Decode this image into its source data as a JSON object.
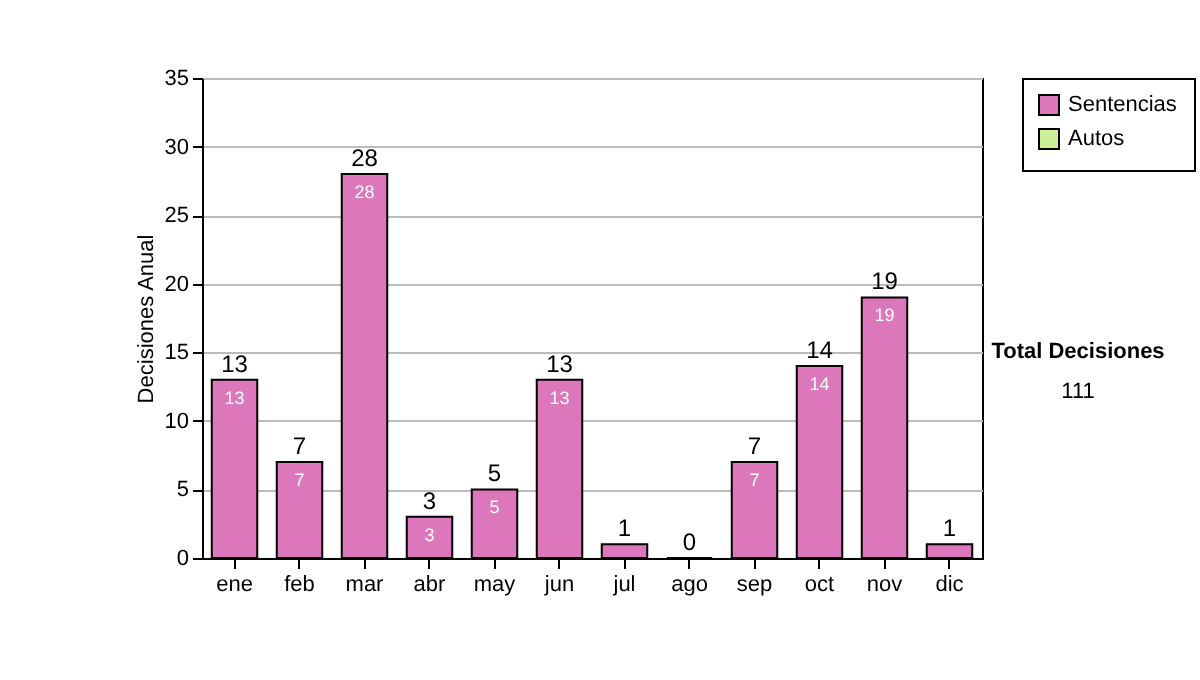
{
  "chart_data": {
    "type": "bar",
    "ylabel": "Decisiones Anual",
    "categories": [
      "ene",
      "feb",
      "mar",
      "abr",
      "may",
      "jun",
      "jul",
      "ago",
      "sep",
      "oct",
      "nov",
      "dic"
    ],
    "stacked": true,
    "series": [
      {
        "name": "Sentencias",
        "color": "#dd77bb",
        "values": [
          13,
          7,
          28,
          3,
          5,
          13,
          1,
          0,
          7,
          14,
          19,
          1
        ],
        "value_labels": [
          "13",
          "7",
          "28",
          "3",
          "5",
          "13",
          null,
          null,
          "7",
          "14",
          "19",
          null
        ]
      },
      {
        "name": "Autos",
        "color": "#ccee99",
        "values": [
          null,
          null,
          null,
          null,
          null,
          null,
          null,
          null,
          null,
          null,
          null,
          null
        ]
      }
    ],
    "totals": [
      "13",
      "7",
      "28",
      "3",
      "5",
      "13",
      "1",
      "0",
      "7",
      "14",
      "19",
      "1"
    ],
    "ylim": [
      0,
      35
    ],
    "yticks": [
      0,
      5,
      10,
      15,
      20,
      25,
      30,
      35
    ],
    "grid": "y",
    "legend": "right",
    "annotations": [
      "Total Decisiones",
      "111"
    ]
  }
}
